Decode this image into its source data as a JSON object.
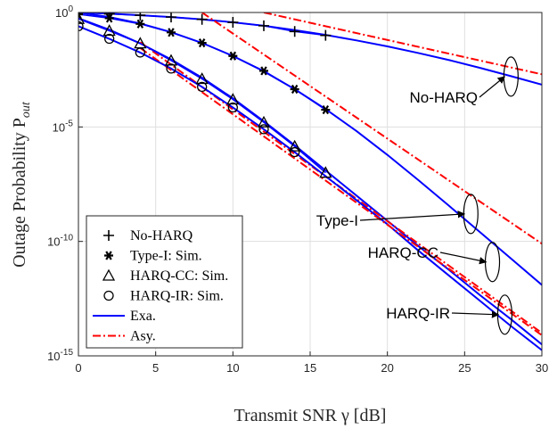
{
  "chart_data": {
    "type": "line",
    "xlabel": "Transmit SNR γ [dB]",
    "ylabel": "Outage Probability P_out",
    "xlim": [
      0,
      30
    ],
    "ylim_log10": [
      -15,
      0
    ],
    "yscale": "log",
    "grid": true,
    "x_ticks": [
      "0",
      "5",
      "10",
      "15",
      "20",
      "25",
      "30"
    ],
    "y_ticks": [
      "10^0",
      "10^-5",
      "10^-10",
      "10^-15"
    ],
    "legend_position": "bottom-left",
    "legend": [
      {
        "label": "No-HARQ",
        "marker": "plus"
      },
      {
        "label": "Type-I: Sim.",
        "marker": "asterisk"
      },
      {
        "label": "HARQ-CC: Sim.",
        "marker": "triangle"
      },
      {
        "label": "HARQ-IR: Sim.",
        "marker": "circle"
      },
      {
        "label": "Exa.",
        "line": "solid-blue"
      },
      {
        "label": "Asy.",
        "line": "dashdot-red"
      }
    ],
    "colors": {
      "exact": "#0000ff",
      "asymptotic": "#ff0000",
      "markers": "#000000"
    },
    "series": [
      {
        "group": "No-HARQ",
        "kind": "exact",
        "x": [
          0,
          2,
          4,
          6,
          8,
          10,
          12,
          14,
          16,
          18,
          20,
          22,
          24,
          26,
          28,
          30
        ],
        "log10_y": [
          0,
          -0.05,
          -0.12,
          -0.2,
          -0.3,
          -0.43,
          -0.58,
          -0.77,
          -0.98,
          -1.22,
          -1.48,
          -1.77,
          -2.08,
          -2.42,
          -2.78,
          -3.15
        ]
      },
      {
        "group": "No-HARQ",
        "kind": "asymptotic",
        "x": [
          12,
          30
        ],
        "log10_y": [
          0,
          -2.7
        ]
      },
      {
        "group": "No-HARQ",
        "kind": "sim",
        "x": [
          0,
          2,
          4,
          6,
          8,
          10,
          12,
          14,
          16
        ],
        "log10_y": [
          0,
          -0.06,
          -0.12,
          -0.2,
          -0.3,
          -0.43,
          -0.58,
          -0.83,
          -1.0
        ]
      },
      {
        "group": "Type-I",
        "kind": "exact",
        "x": [
          0,
          2,
          4,
          6,
          8,
          10,
          12,
          14,
          16,
          18,
          20,
          22,
          24,
          26,
          28,
          30
        ],
        "log10_y": [
          0,
          -0.2,
          -0.48,
          -0.86,
          -1.33,
          -1.9,
          -2.57,
          -3.35,
          -4.22,
          -5.18,
          -6.22,
          -7.32,
          -8.45,
          -9.6,
          -10.75,
          -11.9
        ]
      },
      {
        "group": "Type-I",
        "kind": "asymptotic",
        "x": [
          8,
          30
        ],
        "log10_y": [
          0,
          -10.1
        ]
      },
      {
        "group": "Type-I",
        "kind": "sim",
        "x": [
          0,
          2,
          4,
          6,
          8,
          10,
          12,
          14,
          16
        ],
        "log10_y": [
          -0.08,
          -0.25,
          -0.5,
          -0.87,
          -1.33,
          -1.9,
          -2.55,
          -3.35,
          -4.25
        ]
      },
      {
        "group": "HARQ-CC",
        "kind": "exact",
        "x": [
          0,
          2,
          4,
          6,
          8,
          10,
          12,
          14,
          16,
          18,
          20,
          22,
          24,
          26,
          28,
          30
        ],
        "log10_y": [
          -0.25,
          -0.75,
          -1.35,
          -2.05,
          -2.85,
          -3.75,
          -4.75,
          -5.8,
          -6.9,
          -8.0,
          -9.1,
          -10.2,
          -11.25,
          -12.35,
          -13.4,
          -14.5
        ]
      },
      {
        "group": "HARQ-CC",
        "kind": "asymptotic",
        "x": [
          4,
          30
        ],
        "log10_y": [
          -1.3,
          -14.0
        ]
      },
      {
        "group": "HARQ-CC",
        "kind": "sim",
        "x": [
          0,
          2,
          4,
          6,
          8,
          10,
          12,
          14,
          16
        ],
        "log10_y": [
          -0.28,
          -0.8,
          -1.35,
          -2.1,
          -2.9,
          -3.8,
          -4.8,
          -5.85,
          -7.0
        ]
      },
      {
        "group": "HARQ-IR",
        "kind": "exact",
        "x": [
          0,
          2,
          4,
          6,
          8,
          10,
          12,
          14,
          16,
          18,
          20,
          22,
          24,
          26,
          28,
          30
        ],
        "log10_y": [
          -0.6,
          -1.15,
          -1.75,
          -2.45,
          -3.25,
          -4.15,
          -5.1,
          -6.1,
          -7.15,
          -8.2,
          -9.25,
          -10.4,
          -11.5,
          -12.6,
          -13.7,
          -14.75
        ]
      },
      {
        "group": "HARQ-IR",
        "kind": "asymptotic",
        "x": [
          4,
          30
        ],
        "log10_y": [
          -1.55,
          -14.1
        ]
      },
      {
        "group": "HARQ-IR",
        "kind": "sim",
        "x": [
          0,
          2,
          4,
          6,
          8,
          10,
          12,
          14
        ],
        "log10_y": [
          -0.6,
          -1.15,
          -1.75,
          -2.45,
          -3.25,
          -4.15,
          -5.1,
          -6.1
        ]
      }
    ],
    "annotations": [
      {
        "label": "No-HARQ",
        "target": "No-HARQ",
        "at_x": 28,
        "at_log10_y": -2.8
      },
      {
        "label": "Type-I",
        "target": "Type-I",
        "at_x": 25.4,
        "at_log10_y": -8.8
      },
      {
        "label": "HARQ-CC",
        "target": "HARQ-CC",
        "at_x": 26.8,
        "at_log10_y": -10.9
      },
      {
        "label": "HARQ-IR",
        "target": "HARQ-IR",
        "at_x": 27.6,
        "at_log10_y": -13.2
      }
    ]
  }
}
